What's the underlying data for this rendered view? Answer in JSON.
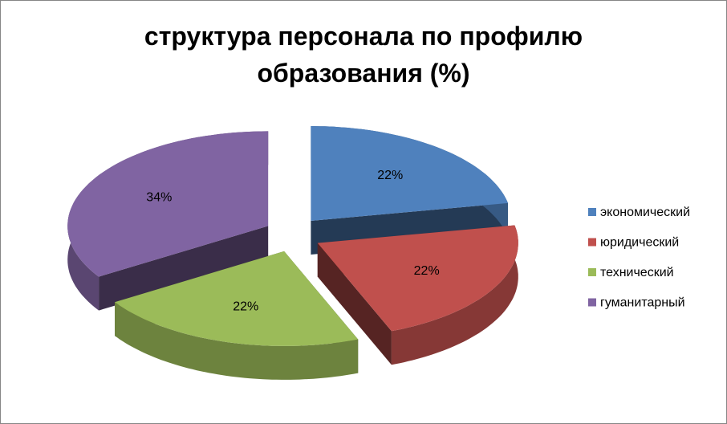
{
  "chart_data": {
    "type": "pie",
    "title": "структура персонала по профилю образования (%)",
    "categories": [
      "экономический",
      "юридический",
      "технический",
      "гуманитарный"
    ],
    "values": [
      22,
      22,
      22,
      34
    ],
    "value_labels": [
      "22%",
      "22%",
      "22%",
      "34%"
    ],
    "colors": [
      "#4f81bd",
      "#c0504d",
      "#9bbb59",
      "#8064a2"
    ],
    "legend": "right"
  }
}
